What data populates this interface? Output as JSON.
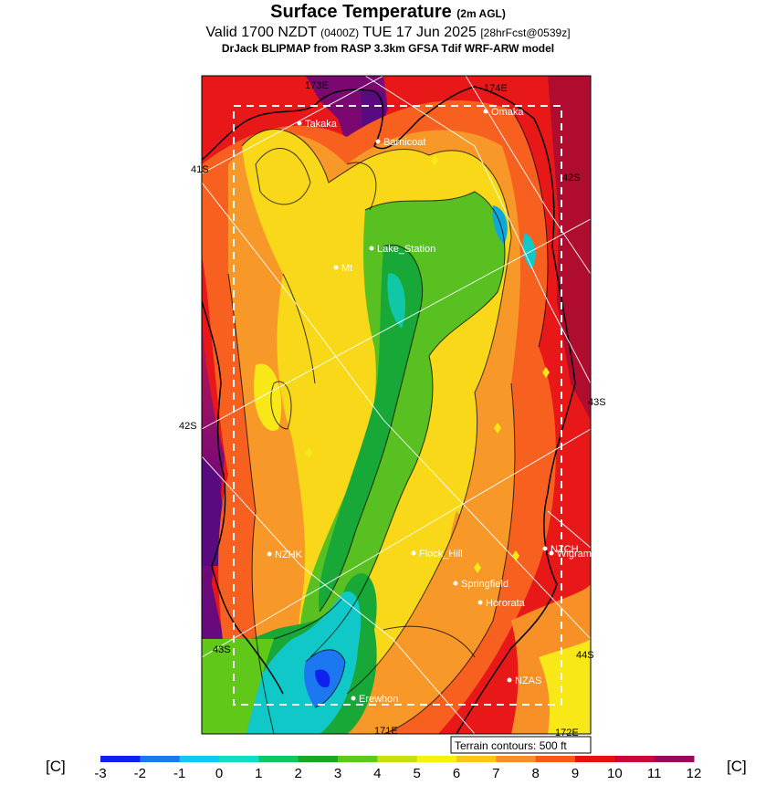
{
  "header": {
    "title": "Surface Temperature",
    "title_suffix": "(2m AGL)",
    "valid_prefix": "Valid 1700 NZDT",
    "valid_z": "(0400Z)",
    "valid_date": "TUE 17 Jun 2025",
    "forecast": "[28hrFcst@0539z]",
    "source": "DrJack BLIPMAP from RASP 3.3km GFSA Tdif WRF-ARW model"
  },
  "map": {
    "lat_labels": [
      "41S",
      "42S",
      "43S",
      "42S",
      "43S",
      "44S"
    ],
    "lon_labels": [
      "173E",
      "174E",
      "171E",
      "172E"
    ],
    "terrain_note": "Terrain contours: 500 ft",
    "places": [
      {
        "name": "Takaka"
      },
      {
        "name": "Barnicoat"
      },
      {
        "name": "Omaka"
      },
      {
        "name": "Lake_Station"
      },
      {
        "name": "Mt"
      },
      {
        "name": "NZHK"
      },
      {
        "name": "Flock_Hill"
      },
      {
        "name": "NZCH"
      },
      {
        "name": "Wigram"
      },
      {
        "name": "Springfield"
      },
      {
        "name": "Hororata"
      },
      {
        "name": "NZAS"
      },
      {
        "name": "Erewhon"
      }
    ]
  },
  "colorbar": {
    "unit_label": "[C]",
    "ticks": [
      "-3",
      "-2",
      "-1",
      "0",
      "1",
      "2",
      "3",
      "4",
      "5",
      "6",
      "7",
      "8",
      "9",
      "10",
      "11",
      "12"
    ],
    "colors": [
      "#1020f0",
      "#1c78f0",
      "#10c8f0",
      "#10dcc8",
      "#10c860",
      "#18a828",
      "#60c818",
      "#c8e010",
      "#f8f010",
      "#f8c818",
      "#f89028",
      "#f85818",
      "#e81010",
      "#c80838",
      "#9c0858"
    ]
  },
  "palette": {
    "ocean_west": "#5a0a80",
    "ocean_east": "#e81818"
  }
}
